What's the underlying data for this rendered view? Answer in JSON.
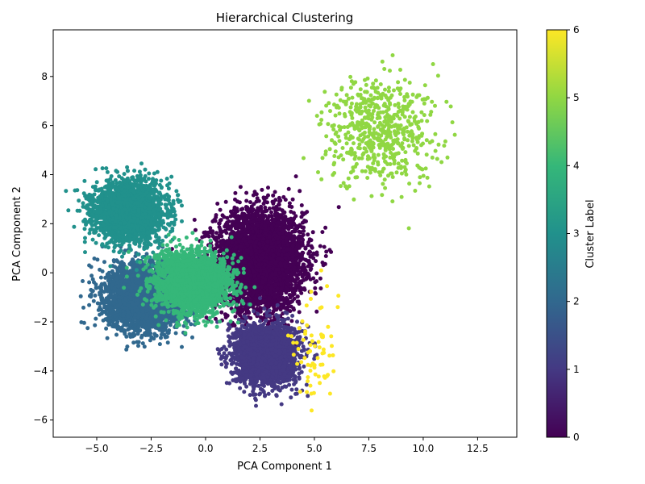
{
  "chart_data": {
    "type": "scatter",
    "title": "Hierarchical Clustering",
    "xlabel": "PCA Component 1",
    "ylabel": "PCA Component 2",
    "xlim": [
      -7.0,
      14.3
    ],
    "ylim": [
      -6.7,
      9.9
    ],
    "x_ticks": [
      -5.0,
      -2.5,
      0.0,
      2.5,
      5.0,
      7.5,
      10.0,
      12.5
    ],
    "x_tick_labels": [
      "−5.0",
      "−2.5",
      "0.0",
      "2.5",
      "5.0",
      "7.5",
      "10.0",
      "12.5"
    ],
    "y_ticks": [
      -6,
      -4,
      -2,
      0,
      2,
      4,
      6,
      8
    ],
    "y_tick_labels": [
      "−6",
      "−4",
      "−2",
      "0",
      "2",
      "4",
      "6",
      "8"
    ],
    "grid": false,
    "legend": "none",
    "colorbar": {
      "label": "Cluster Label",
      "colormap": "viridis",
      "range": [
        0,
        6
      ],
      "ticks": [
        0,
        1,
        2,
        3,
        4,
        5,
        6
      ],
      "tick_labels": [
        "0",
        "1",
        "2",
        "3",
        "4",
        "5",
        "6"
      ]
    },
    "clusters": [
      {
        "label": 0,
        "color": "#440154",
        "center": [
          2.5,
          0.5
        ],
        "spread": [
          1.0,
          1.0
        ],
        "points": 4000
      },
      {
        "label": 1,
        "color": "#443983",
        "center": [
          2.8,
          -3.3
        ],
        "spread": [
          0.7,
          0.6
        ],
        "points": 2500
      },
      {
        "label": 2,
        "color": "#31688e",
        "center": [
          -2.8,
          -1.0
        ],
        "spread": [
          0.9,
          0.65
        ],
        "points": 3000
      },
      {
        "label": 3,
        "color": "#21918c",
        "center": [
          -3.5,
          2.5
        ],
        "spread": [
          0.8,
          0.6
        ],
        "points": 2500
      },
      {
        "label": 4,
        "color": "#35b779",
        "center": [
          -0.6,
          -0.4
        ],
        "spread": [
          0.85,
          0.6
        ],
        "points": 2500
      },
      {
        "label": 5,
        "color": "#90d743",
        "center": [
          8.0,
          5.8
        ],
        "spread": [
          1.3,
          1.1
        ],
        "points": 600
      },
      {
        "label": 6,
        "color": "#fde725",
        "center": [
          5.0,
          -3.2
        ],
        "spread": [
          0.55,
          1.1
        ],
        "points": 70
      }
    ]
  }
}
